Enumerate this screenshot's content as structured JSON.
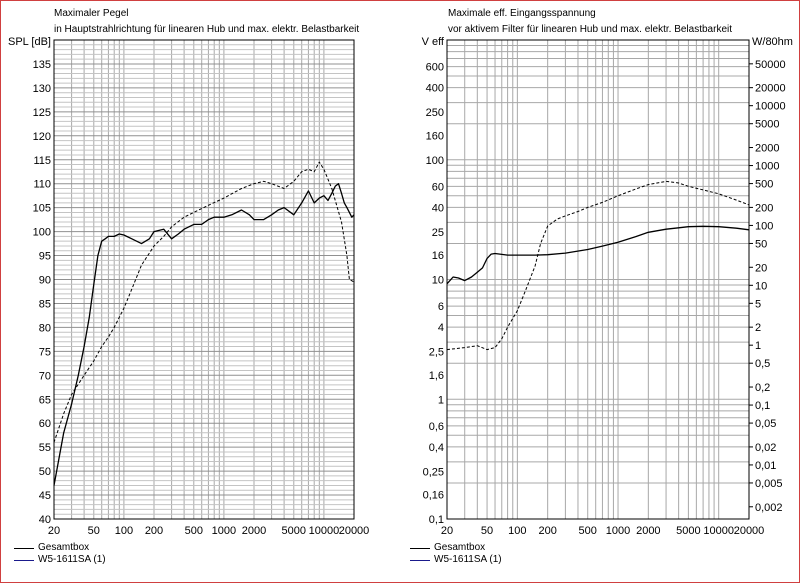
{
  "chart_data": [
    {
      "type": "line",
      "title": "Maximaler Pegel",
      "subtitle": "in Hauptstrahlrichtung für linearen Hub und max. elektr. Belastbarkeit",
      "ylabel": "SPL [dB]",
      "xscale": "log",
      "xlim": [
        20,
        20000
      ],
      "ylim": [
        40,
        140
      ],
      "grid": true,
      "legend_position": "bottom-left",
      "x_ticks": [
        "20",
        "50",
        "100",
        "200",
        "500",
        "1000",
        "2000",
        "5000",
        "10000",
        "20000"
      ],
      "y_ticks": [
        "40",
        "45",
        "50",
        "55",
        "60",
        "65",
        "70",
        "75",
        "80",
        "85",
        "90",
        "95",
        "100",
        "105",
        "110",
        "115",
        "120",
        "125",
        "130",
        "135"
      ],
      "series": [
        {
          "name": "Gesamtbox",
          "style": "solid",
          "color": "#000000",
          "x": [
            20,
            25,
            30,
            35,
            40,
            45,
            50,
            55,
            60,
            65,
            70,
            80,
            90,
            100,
            120,
            150,
            180,
            200,
            250,
            300,
            350,
            400,
            500,
            600,
            700,
            800,
            1000,
            1200,
            1500,
            1800,
            2000,
            2500,
            3000,
            3500,
            4000,
            5000,
            6000,
            7000,
            8000,
            9000,
            10000,
            11000,
            12000,
            13000,
            14000,
            15000,
            16000,
            17000,
            18000,
            19000,
            20000
          ],
          "values": [
            47,
            58,
            64,
            70,
            76,
            82,
            89,
            95,
            98,
            98.5,
            99,
            99,
            99.5,
            99.3,
            98.5,
            97.5,
            98.5,
            100,
            100.5,
            98.5,
            99.5,
            100.5,
            101.5,
            101.5,
            102.5,
            103,
            103,
            103.5,
            104.5,
            103.5,
            102.5,
            102.5,
            103.5,
            104.5,
            105,
            103.5,
            106,
            108.5,
            106,
            107,
            107.5,
            106.5,
            108,
            109.5,
            110,
            108,
            106,
            105,
            104,
            103,
            103.5
          ]
        },
        {
          "name": "W5-1611SA (1)",
          "style": "dashed",
          "color": "#000000",
          "x": [
            20,
            25,
            30,
            40,
            50,
            60,
            70,
            80,
            100,
            120,
            150,
            200,
            250,
            300,
            400,
            500,
            700,
            1000,
            1500,
            2000,
            2500,
            3000,
            4000,
            5000,
            6000,
            7000,
            8000,
            9000,
            10000,
            12000,
            15000,
            17000,
            18000,
            20000
          ],
          "values": [
            56,
            62,
            66,
            70,
            73,
            76,
            78,
            80,
            84,
            88,
            93,
            97,
            99,
            101,
            103,
            104,
            105.5,
            107,
            109,
            110,
            110.5,
            110,
            109,
            110.5,
            112.5,
            113,
            112.5,
            114.5,
            113,
            109,
            102,
            95,
            90,
            89.5
          ]
        }
      ]
    },
    {
      "type": "line",
      "title": "Maximale eff. Eingangsspannung",
      "subtitle": "vor aktivem Filter für linearen Hub und max. elektr. Belastbarkeit",
      "ylabel": "V eff",
      "y2label": "W/80hm",
      "xscale": "log",
      "yscale": "log",
      "xlim": [
        20,
        20000
      ],
      "ylim": [
        0.1,
        1000
      ],
      "grid": true,
      "legend_position": "bottom-left",
      "x_ticks": [
        "20",
        "50",
        "100",
        "200",
        "500",
        "1000",
        "2000",
        "5000",
        "10000",
        "20000"
      ],
      "y_ticks": [
        "0,1",
        "0,16",
        "0,25",
        "0,4",
        "0,6",
        "1",
        "1,6",
        "2,5",
        "4",
        "6",
        "10",
        "16",
        "25",
        "40",
        "60",
        "100",
        "160",
        "250",
        "400",
        "600",
        "V eff"
      ],
      "y2_ticks": [
        "0,002",
        "0,005",
        "0,01",
        "0,02",
        "0,05",
        "0,1",
        "0,2",
        "0,5",
        "1",
        "2",
        "5",
        "10",
        "20",
        "50",
        "100",
        "200",
        "500",
        "1000",
        "2000",
        "5000",
        "10000",
        "20000",
        "50000",
        "W/80hm"
      ],
      "series": [
        {
          "name": "Gesamtbox",
          "style": "solid",
          "color": "#000000",
          "x": [
            20,
            23,
            26,
            30,
            35,
            40,
            45,
            50,
            55,
            60,
            70,
            80,
            100,
            150,
            200,
            300,
            500,
            700,
            1000,
            1500,
            2000,
            3000,
            4000,
            5000,
            7000,
            10000,
            15000,
            20000
          ],
          "values": [
            9.2,
            10.5,
            10.3,
            9.8,
            10.5,
            11.5,
            12.5,
            15,
            16.3,
            16.5,
            16.2,
            16,
            16,
            16,
            16.1,
            16.6,
            17.8,
            19,
            20.5,
            22.8,
            24.8,
            26.3,
            27,
            27.6,
            27.8,
            27.6,
            26.8,
            26
          ]
        },
        {
          "name": "W5-1611SA (1)",
          "style": "dashed",
          "color": "#000000",
          "x": [
            20,
            30,
            40,
            50,
            60,
            70,
            80,
            100,
            120,
            150,
            170,
            200,
            250,
            300,
            400,
            500,
            700,
            1000,
            1500,
            2000,
            3000,
            4000,
            5000,
            7000,
            10000,
            15000,
            20000
          ],
          "values": [
            2.6,
            2.7,
            2.8,
            2.6,
            2.7,
            3.2,
            4,
            5.5,
            8,
            13,
            20,
            28,
            32,
            34,
            37,
            40,
            44,
            50,
            57,
            62,
            66,
            64,
            60,
            56,
            52,
            46,
            42
          ]
        }
      ]
    }
  ]
}
